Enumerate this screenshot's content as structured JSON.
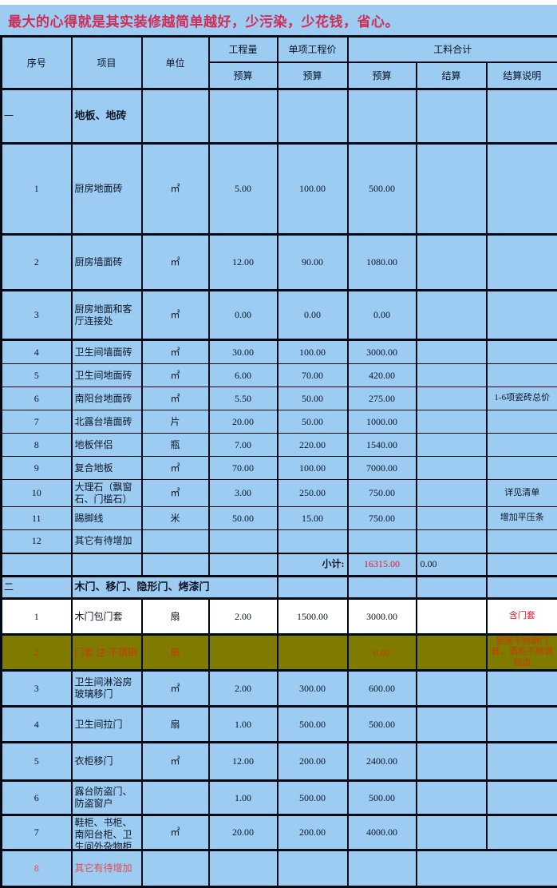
{
  "title": "最大的心得就是其实装修越简单越好，少污染，少花钱，省心。",
  "colors": {
    "blue": "#9cccf2",
    "olive": "#7e7b00",
    "white": "#ffffff",
    "title_red": "#cf2d56",
    "red": "#e51728",
    "soft_red": "#e34c52",
    "olive_red": "#c63c05"
  },
  "table": {
    "header": {
      "col_no": "序号",
      "col_item": "项目",
      "col_unit": "单位",
      "col_qty": "工程量",
      "col_unit_price": "单项工程价",
      "col_total": "工料合计",
      "sub_budget_qty": "预算",
      "sub_budget_price": "预算",
      "sub_budget_total": "预算",
      "sub_settle": "结算",
      "sub_settle_note": "结算说明"
    },
    "rows": [
      {
        "type": "section",
        "no": "一",
        "item": "地板、地砖"
      },
      {
        "type": "item",
        "no": "1",
        "item": "厨房地面砖",
        "unit": "㎡",
        "qty": "5.00",
        "price": "100.00",
        "budget": "500.00",
        "settle": "",
        "note": ""
      },
      {
        "type": "item",
        "no": "2",
        "item": "厨房墙面砖",
        "unit": "㎡",
        "qty": "12.00",
        "price": "90.00",
        "budget": "1080.00",
        "settle": "",
        "note": ""
      },
      {
        "type": "item",
        "no": "3",
        "item": "厨房地面和客厅连接处",
        "unit": "㎡",
        "qty": "0.00",
        "price": "0.00",
        "budget": "0.00",
        "settle": "",
        "note": ""
      },
      {
        "type": "item",
        "no": "4",
        "item": "卫生间墙面砖",
        "unit": "㎡",
        "qty": "30.00",
        "price": "100.00",
        "budget": "3000.00",
        "settle": "",
        "note": ""
      },
      {
        "type": "item",
        "no": "5",
        "item": "卫生间地面砖",
        "unit": "㎡",
        "qty": "6.00",
        "price": "70.00",
        "budget": "420.00",
        "settle": "",
        "note": ""
      },
      {
        "type": "item",
        "no": "6",
        "item": "南阳台地面砖",
        "unit": "㎡",
        "qty": "5.50",
        "price": "50.00",
        "budget": "275.00",
        "settle": "",
        "note": "1-6项瓷砖总价"
      },
      {
        "type": "item",
        "no": "7",
        "item": "北露台墙面砖",
        "unit": "片",
        "qty": "20.00",
        "price": "50.00",
        "budget": "1000.00",
        "settle": "",
        "note": ""
      },
      {
        "type": "item",
        "no": "8",
        "item": "地板伴侣",
        "unit": "瓶",
        "qty": "7.00",
        "price": "220.00",
        "budget": "1540.00",
        "settle": "",
        "note": ""
      },
      {
        "type": "item",
        "no": "9",
        "item": "复合地板",
        "unit": "㎡",
        "qty": "70.00",
        "price": "100.00",
        "budget": "7000.00",
        "settle": "",
        "note": ""
      },
      {
        "type": "item",
        "no": "10",
        "item": "大理石（飘窗石、门槛石）",
        "unit": "㎡",
        "qty": "3.00",
        "price": "250.00",
        "budget": "750.00",
        "settle": "",
        "note": "详见清单"
      },
      {
        "type": "item",
        "no": "11",
        "item": "踢脚线",
        "unit": "米",
        "qty": "50.00",
        "price": "15.00",
        "budget": "750.00",
        "settle": "",
        "note": "增加平压条"
      },
      {
        "type": "item",
        "no": "12",
        "item": "其它有待增加",
        "unit": "",
        "qty": "",
        "price": "",
        "budget": "",
        "settle": "",
        "note": ""
      },
      {
        "type": "subtotal",
        "no": "",
        "item": "",
        "unit": "",
        "qty": "",
        "price": "小计:",
        "budget": "16315.00",
        "settle": "0.00",
        "note": "",
        "red": {
          "budget": "red"
        }
      },
      {
        "type": "section",
        "no": "二",
        "item": "木门、移门、隐形门、烤漆门",
        "item_colspan": 3
      },
      {
        "type": "item",
        "no": "1",
        "item": "木门包门套",
        "unit": "扇",
        "qty": "2.00",
        "price": "1500.00",
        "budget": "3000.00",
        "settle": "",
        "note": "含门套",
        "bg": "white",
        "red": {
          "note": "red"
        }
      },
      {
        "type": "item",
        "no": "2",
        "item": "门套 注:不锈钢",
        "unit": "扇",
        "qty": "",
        "price": "",
        "budget": "0.00",
        "settle": "",
        "note": "厨房不锈钢门套、酒柜不锈钢包边",
        "bg": "olive"
      },
      {
        "type": "item",
        "no": "3",
        "item": "卫生间淋浴房玻璃移门",
        "unit": "㎡",
        "qty": "2.00",
        "price": "300.00",
        "budget": "600.00",
        "settle": "",
        "note": ""
      },
      {
        "type": "item",
        "no": "4",
        "item": "卫生间拉门",
        "unit": "扇",
        "qty": "1.00",
        "price": "500.00",
        "budget": "500.00",
        "settle": "",
        "note": ""
      },
      {
        "type": "item",
        "no": "5",
        "item": "衣柜移门",
        "unit": "㎡",
        "qty": "12.00",
        "price": "200.00",
        "budget": "2400.00",
        "settle": "",
        "note": ""
      },
      {
        "type": "item",
        "no": "6",
        "item": "露台防盗门、防盗窗户",
        "unit": "",
        "qty": "1.00",
        "price": "500.00",
        "budget": "500.00",
        "settle": "",
        "note": ""
      },
      {
        "type": "item",
        "no": "7",
        "item": "鞋柜、书柜、南阳台柜、卫生间外杂物柜",
        "unit": "㎡",
        "qty": "20.00",
        "price": "200.00",
        "budget": "4000.00",
        "settle": "",
        "note": ""
      },
      {
        "type": "item",
        "no": "8",
        "item": "其它有待增加",
        "unit": "",
        "qty": "",
        "price": "",
        "budget": "",
        "settle": "",
        "note": "",
        "merge_tail": true,
        "red": {
          "no": "soft-red",
          "item": "soft-red"
        }
      }
    ]
  }
}
